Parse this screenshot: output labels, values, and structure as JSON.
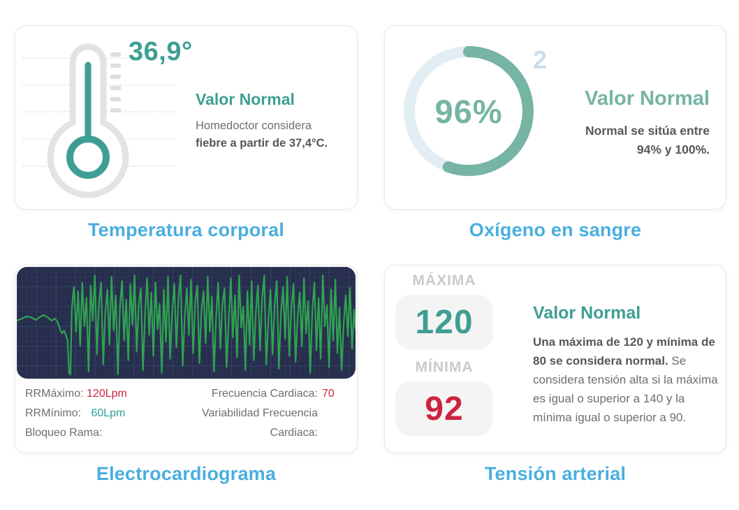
{
  "colors": {
    "teal": "#3f9e94",
    "teal2": "#2aa29b",
    "teal_light": "#76b4a4",
    "caption_blue": "#4aaede",
    "ring_track": "#e3edf4",
    "superscript_blue": "#cbdeed",
    "red": "#cc2440",
    "text_gray": "#6d6e71",
    "text_dark": "#565759",
    "label_gray": "#c9cacc",
    "box_bg": "#f4f4f5",
    "card_border": "#e7e7e7",
    "thermo_gray": "#e3e3e3",
    "tick_gray": "#dedede",
    "dotline_gray": "#e9e9e9",
    "ecg_bg": "#272e4d",
    "ecg_grid_minor": "#333b5e",
    "ecg_grid_major": "#46507a",
    "ecg_green": "#2fa350"
  },
  "cards": {
    "temperature": {
      "caption": "Temperatura corporal",
      "reading": "36,9°",
      "heading": "Valor Normal",
      "line1": "Homedoctor considera",
      "line2": "fiebre a partir de 37,4°C."
    },
    "oxygen": {
      "caption": "Oxígeno en sangre",
      "value": "96%",
      "superscript": "2",
      "heading": "Valor Normal",
      "line1": "Normal se sitúa entre",
      "line2": "94% y 100%."
    },
    "ecg": {
      "caption": "Electrocardiograma",
      "stats_left": [
        {
          "label": "RRMáximo:",
          "value": "120Lpm"
        },
        {
          "label": "RRMínimo:",
          "value": "60Lpm"
        },
        {
          "label": "Bloqueo Rama:",
          "value": ""
        }
      ],
      "stats_right": [
        {
          "label": "Frecuencia Cardiaca:",
          "value": "70"
        },
        {
          "label": "Variabilidad Frecuencia",
          "value": ""
        },
        {
          "label": "Cardiaca:",
          "value": ""
        }
      ]
    },
    "blood_pressure": {
      "caption": "Tensión arterial",
      "max_label": "MÁXIMA",
      "max_value": "120",
      "min_label": "MÍNIMA",
      "min_value": "92",
      "heading": "Valor Normal",
      "text_bold": "Una máxima de 120 y mínima de 80 se considera normal.",
      "text_regular": " Se considera tensión alta si la máxima es igual o superior a 140 y la mínima igual o superior a 90."
    }
  },
  "chart_data": {
    "type": "line",
    "title": "Electrocardiograma",
    "xlabel": "",
    "ylabel": "",
    "x_range": [
      0,
      486
    ],
    "y_range": [
      0,
      158
    ],
    "grid": "on",
    "legend": "off",
    "note": "ECG monitor trace in panel pixels (y measured from panel top); calm low-amplitude segment for first ~15% then sustained high-amplitude spikes",
    "series": [
      {
        "name": "ecg-trace",
        "points": [
          [
            0,
            76
          ],
          [
            8,
            73
          ],
          [
            14,
            70
          ],
          [
            20,
            71
          ],
          [
            27,
            75
          ],
          [
            33,
            71
          ],
          [
            38,
            68
          ],
          [
            44,
            71
          ],
          [
            50,
            76
          ],
          [
            55,
            73
          ],
          [
            59,
            79
          ],
          [
            62,
            88
          ],
          [
            65,
            94
          ],
          [
            68,
            90
          ],
          [
            71,
            98
          ],
          [
            73,
            104
          ],
          [
            75,
            150
          ],
          [
            77,
            152
          ],
          [
            79,
            60
          ],
          [
            82,
            28
          ],
          [
            85,
            92
          ],
          [
            88,
            34
          ],
          [
            91,
            112
          ],
          [
            94,
            22
          ],
          [
            97,
            84
          ],
          [
            100,
            44
          ],
          [
            103,
            148
          ],
          [
            106,
            26
          ],
          [
            109,
            76
          ],
          [
            112,
            12
          ],
          [
            115,
            124
          ],
          [
            118,
            50
          ],
          [
            121,
            22
          ],
          [
            124,
            138
          ],
          [
            127,
            66
          ],
          [
            130,
            32
          ],
          [
            133,
            110
          ],
          [
            136,
            14
          ],
          [
            139,
            90
          ],
          [
            142,
            40
          ],
          [
            145,
            152
          ],
          [
            148,
            58
          ],
          [
            151,
            20
          ],
          [
            154,
            104
          ],
          [
            157,
            46
          ],
          [
            160,
            132
          ],
          [
            163,
            24
          ],
          [
            166,
            82
          ],
          [
            169,
            12
          ],
          [
            172,
            120
          ],
          [
            175,
            54
          ],
          [
            178,
            30
          ],
          [
            181,
            146
          ],
          [
            184,
            68
          ],
          [
            187,
            16
          ],
          [
            190,
            96
          ],
          [
            193,
            36
          ],
          [
            196,
            126
          ],
          [
            199,
            22
          ],
          [
            202,
            88
          ],
          [
            205,
            52
          ],
          [
            208,
            150
          ],
          [
            211,
            32
          ],
          [
            214,
            106
          ],
          [
            217,
            14
          ],
          [
            220,
            130
          ],
          [
            223,
            62
          ],
          [
            226,
            24
          ],
          [
            229,
            114
          ],
          [
            232,
            44
          ],
          [
            235,
            12
          ],
          [
            238,
            140
          ],
          [
            241,
            72
          ],
          [
            244,
            30
          ],
          [
            247,
            96
          ],
          [
            250,
            18
          ],
          [
            253,
            122
          ],
          [
            256,
            50
          ],
          [
            259,
            26
          ],
          [
            262,
            136
          ],
          [
            265,
            60
          ],
          [
            268,
            34
          ],
          [
            271,
            108
          ],
          [
            274,
            14
          ],
          [
            277,
            92
          ],
          [
            280,
            42
          ],
          [
            283,
            148
          ],
          [
            286,
            70
          ],
          [
            289,
            22
          ],
          [
            292,
            116
          ],
          [
            295,
            54
          ],
          [
            298,
            30
          ],
          [
            301,
            142
          ],
          [
            304,
            78
          ],
          [
            307,
            16
          ],
          [
            310,
            100
          ],
          [
            313,
            40
          ],
          [
            316,
            128
          ],
          [
            319,
            12
          ],
          [
            322,
            86
          ],
          [
            325,
            56
          ],
          [
            328,
            146
          ],
          [
            331,
            34
          ],
          [
            334,
            110
          ],
          [
            337,
            20
          ],
          [
            340,
            132
          ],
          [
            343,
            64
          ],
          [
            346,
            26
          ],
          [
            349,
            118
          ],
          [
            352,
            46
          ],
          [
            355,
            12
          ],
          [
            358,
            138
          ],
          [
            361,
            76
          ],
          [
            364,
            32
          ],
          [
            367,
            124
          ],
          [
            370,
            52
          ],
          [
            373,
            20
          ],
          [
            376,
            144
          ],
          [
            379,
            66
          ],
          [
            382,
            28
          ],
          [
            385,
            102
          ],
          [
            388,
            14
          ],
          [
            391,
            126
          ],
          [
            394,
            58
          ],
          [
            397,
            24
          ],
          [
            400,
            134
          ],
          [
            403,
            70
          ],
          [
            406,
            36
          ],
          [
            409,
            112
          ],
          [
            412,
            16
          ],
          [
            415,
            94
          ],
          [
            418,
            48
          ],
          [
            421,
            150
          ],
          [
            424,
            62
          ],
          [
            427,
            22
          ],
          [
            430,
            118
          ],
          [
            433,
            44
          ],
          [
            436,
            130
          ],
          [
            439,
            12
          ],
          [
            442,
            84
          ],
          [
            445,
            54
          ],
          [
            448,
            142
          ],
          [
            451,
            32
          ],
          [
            454,
            104
          ],
          [
            457,
            18
          ],
          [
            460,
            122
          ],
          [
            463,
            58
          ],
          [
            466,
            146
          ],
          [
            469,
            80
          ],
          [
            472,
            40
          ],
          [
            475,
            98
          ],
          [
            478,
            30
          ],
          [
            481,
            116
          ],
          [
            484,
            60
          ],
          [
            486,
            88
          ]
        ]
      }
    ]
  }
}
